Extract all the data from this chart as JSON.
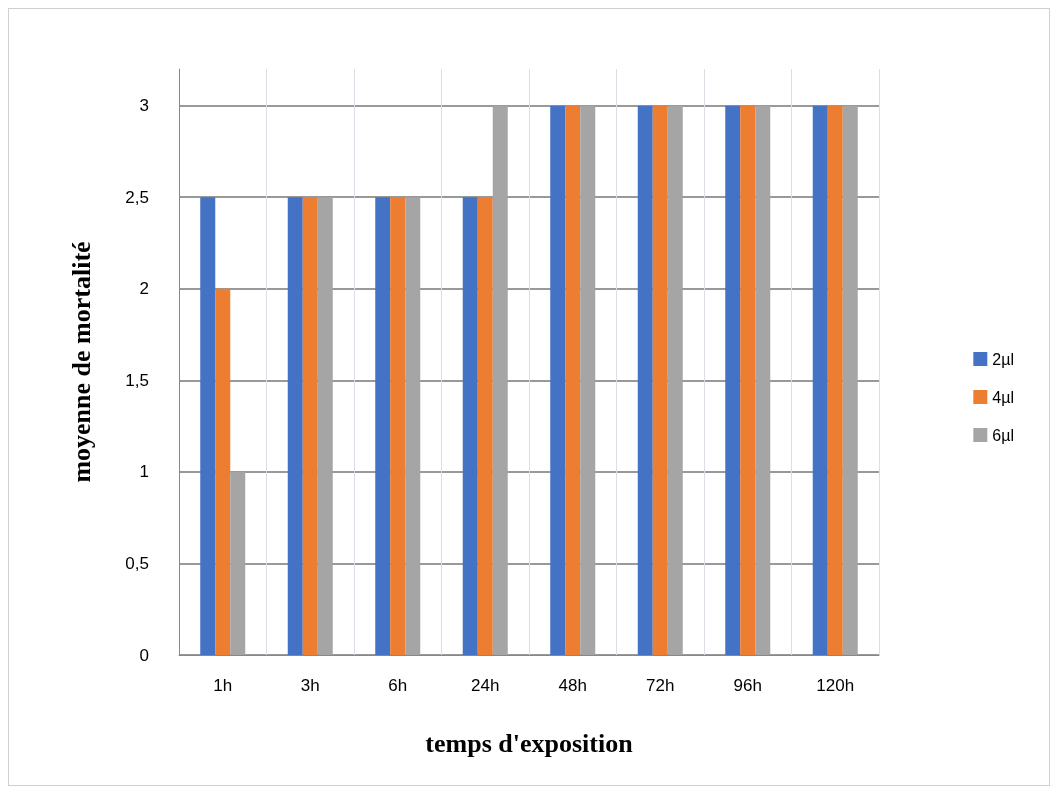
{
  "chart_data": {
    "type": "bar",
    "xlabel": "temps d'exposition",
    "ylabel": "moyenne de mortalité",
    "categories": [
      "1h",
      "3h",
      "6h",
      "24h",
      "48h",
      "72h",
      "96h",
      "120h"
    ],
    "series": [
      {
        "name": "2µl",
        "color": "#4472c4",
        "values": [
          2.5,
          2.5,
          2.5,
          2.5,
          3,
          3,
          3,
          3
        ]
      },
      {
        "name": "4µl",
        "color": "#ed7d31",
        "values": [
          2,
          2.5,
          2.5,
          2.5,
          3,
          3,
          3,
          3
        ]
      },
      {
        "name": "6µl",
        "color": "#a5a5a5",
        "values": [
          1,
          2.5,
          2.5,
          3,
          3,
          3,
          3,
          3
        ]
      }
    ],
    "ylim": [
      0,
      3.2
    ],
    "yticks": [
      0,
      {
        "value": 0.5,
        "label": "0,5"
      },
      1,
      {
        "value": 1.5,
        "label": "1,5"
      },
      2,
      {
        "value": 2.5,
        "label": "2,5"
      },
      3
    ],
    "grid": true,
    "legend": "right"
  }
}
